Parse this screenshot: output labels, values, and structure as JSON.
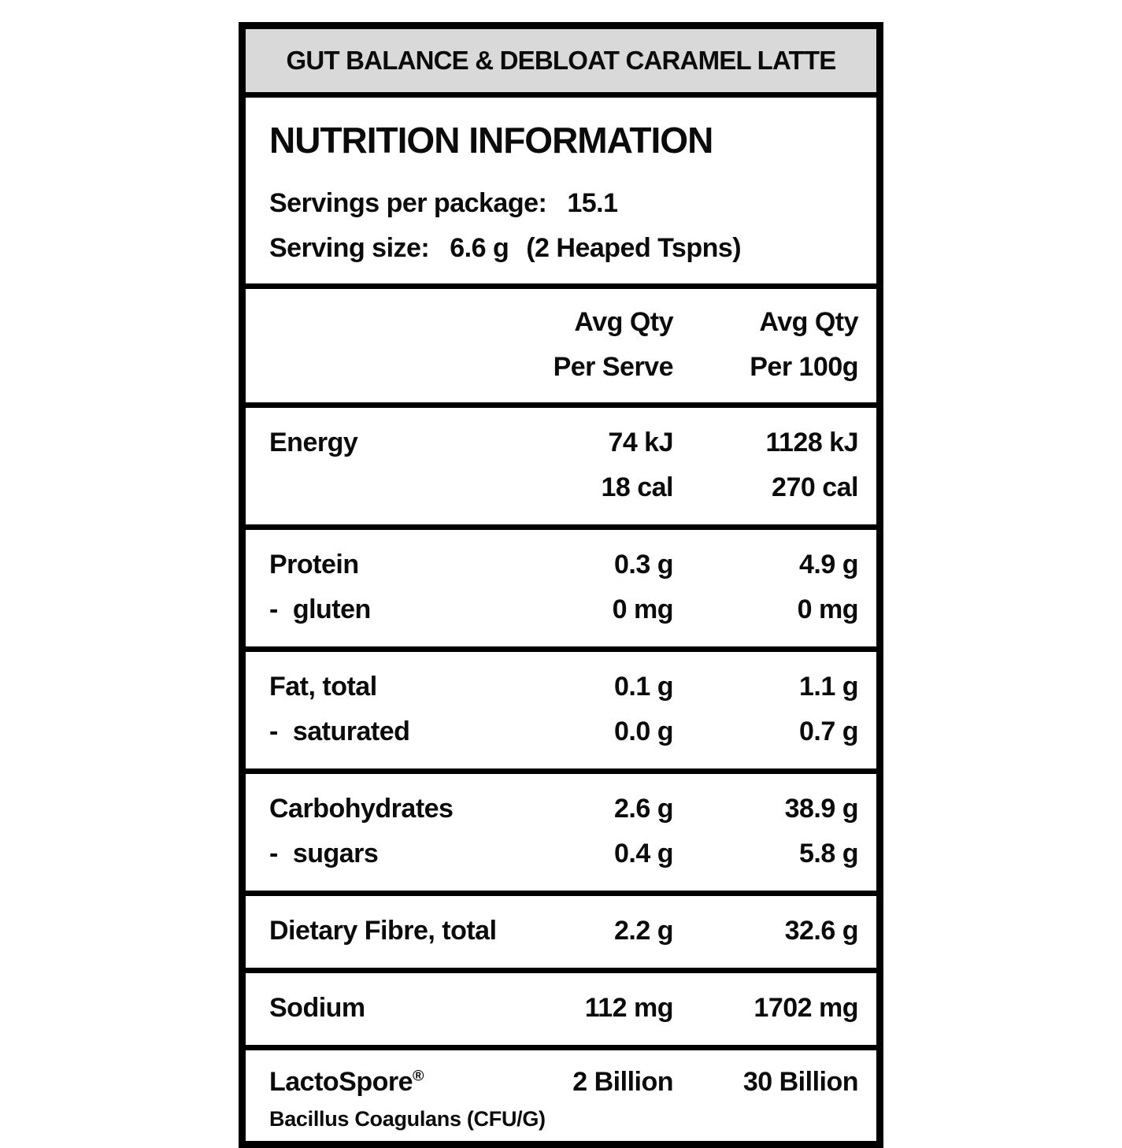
{
  "colors": {
    "header_background": "#d9d9d9",
    "border": "#000000",
    "text": "#0b0b0b"
  },
  "product_band": {
    "title": "GUT BALANCE & DEBLOAT CARAMEL LATTE"
  },
  "panel": {
    "title": "NUTRITION INFORMATION",
    "servings_per_package_label": "Servings per package:",
    "servings_per_package_value": "15.1",
    "serving_size_label": "Serving size:",
    "serving_size_value": "6.6 g",
    "serving_size_note": "(2 Heaped Tspns)"
  },
  "column_headers": {
    "per_serve_line1": "Avg Qty",
    "per_serve_line2": "Per Serve",
    "per_100g_line1": "Avg Qty",
    "per_100g_line2": "Per 100g"
  },
  "ui": {
    "sub_item_dash": "-"
  },
  "rows": [
    {
      "label": "Energy",
      "serve_line1": "74 kJ",
      "per100_line1": "1128 kJ",
      "serve_line2": "18 cal",
      "per100_line2": "270 cal"
    },
    {
      "label": "Protein",
      "serve": "0.3 g",
      "per100": "4.9 g",
      "sub": {
        "label": "gluten",
        "serve": "0 mg",
        "per100": "0 mg"
      }
    },
    {
      "label": "Fat, total",
      "serve": "0.1 g",
      "per100": "1.1 g",
      "sub": {
        "label": "saturated",
        "serve": "0.0 g",
        "per100": "0.7 g"
      }
    },
    {
      "label": "Carbohydrates",
      "serve": "2.6 g",
      "per100": "38.9 g",
      "sub": {
        "label": "sugars",
        "serve": "0.4 g",
        "per100": "5.8 g"
      }
    },
    {
      "label": "Dietary Fibre, total",
      "serve": "2.2 g",
      "per100": "32.6 g"
    },
    {
      "label": "Sodium",
      "serve": "112 mg",
      "per100": "1702 mg"
    },
    {
      "label": "LactoSpore",
      "label_sup": "®",
      "serve": "2 Billion",
      "per100": "30 Billion",
      "note": "Bacillus Coagulans (CFU/G)"
    }
  ]
}
